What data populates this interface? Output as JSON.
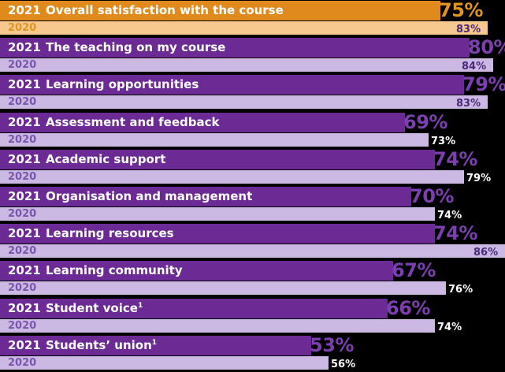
{
  "chart_data": {
    "type": "bar",
    "orientation": "horizontal",
    "series": [
      {
        "name": "2021",
        "values": [
          75,
          80,
          79,
          69,
          74,
          70,
          74,
          67,
          66,
          53
        ]
      },
      {
        "name": "2020",
        "values": [
          83,
          84,
          83,
          73,
          79,
          74,
          86,
          76,
          74,
          56
        ]
      }
    ],
    "categories": [
      "Overall satisfaction with the course",
      "The teaching on my course",
      "Learning opportunities",
      "Assessment and feedback",
      "Academic support",
      "Organisation and management",
      "Learning resources",
      "Learning community",
      "Student voice",
      "Students’ union"
    ],
    "footnote_marks": [
      "",
      "",
      "",
      "",
      "",
      "",
      "",
      "",
      "1",
      "1"
    ],
    "value_suffix": "%",
    "grid": false,
    "colors": {
      "highlight_2021": "#e08a1e",
      "highlight_2020": "#f8c98e",
      "highlight_text": "#e0951f",
      "bar_2021": "#6b2a94",
      "bar_2020": "#cbb8e3",
      "label_2020": "#7a55b0",
      "pct_2021": "#7c3fb0",
      "pct_2020": "#ffffff"
    }
  }
}
